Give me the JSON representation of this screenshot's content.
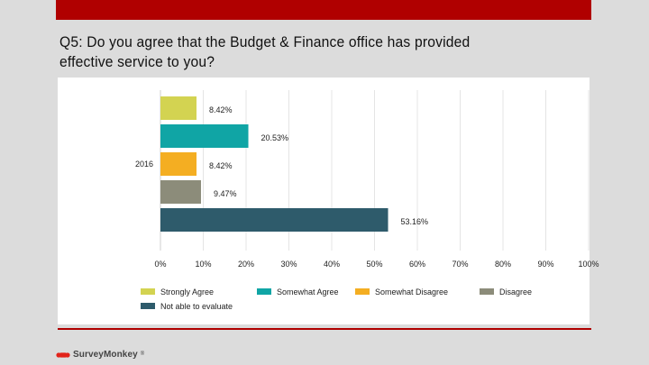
{
  "slide": {
    "title": "Q5: Do you agree that the Budget & Finance office has provided effective service to you?",
    "brand_name": "SurveyMonkey",
    "brand_mark": "®"
  },
  "colors": {
    "top_bar": "#b00000",
    "rule": "#b00000"
  },
  "chart_data": {
    "type": "bar",
    "orientation": "horizontal",
    "categories": [
      "2016"
    ],
    "series": [
      {
        "name": "Strongly Agree",
        "values": [
          8.42
        ],
        "label": "8.42%",
        "color": "#d3d351"
      },
      {
        "name": "Somewhat Agree",
        "values": [
          20.53
        ],
        "label": "20.53%",
        "color": "#10a5a5"
      },
      {
        "name": "Somewhat Disagree",
        "values": [
          8.42
        ],
        "label": "8.42%",
        "color": "#f4ae22"
      },
      {
        "name": "Disagree",
        "values": [
          9.47
        ],
        "label": "9.47%",
        "color": "#8c8c7a"
      },
      {
        "name": "Not able to evaluate",
        "values": [
          53.16
        ],
        "label": "53.16%",
        "color": "#2e5b6b"
      }
    ],
    "xlim": [
      0,
      100
    ],
    "xticks": [
      "0%",
      "10%",
      "20%",
      "30%",
      "40%",
      "50%",
      "60%",
      "70%",
      "80%",
      "90%",
      "100%"
    ],
    "grid": true,
    "legend_position": "bottom"
  }
}
